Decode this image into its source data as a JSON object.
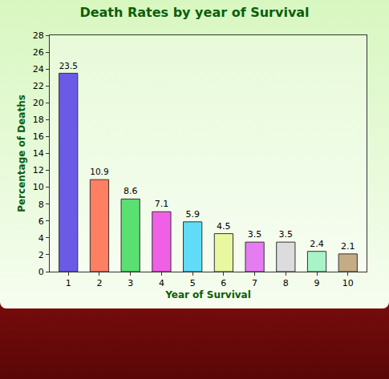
{
  "chart_data": {
    "type": "bar",
    "title": "Death Rates by year of Survival",
    "x_label": "Year of Survival",
    "y_label": "Percentage of Deaths",
    "categories": [
      "1",
      "2",
      "3",
      "4",
      "5",
      "6",
      "7",
      "8",
      "9",
      "10"
    ],
    "values": [
      23.5,
      10.9,
      8.6,
      7.1,
      5.9,
      4.5,
      3.5,
      3.5,
      2.4,
      2.1
    ],
    "colors": [
      "#6a5ae6",
      "#ff7f62",
      "#5ae070",
      "#f060e6",
      "#60dcf8",
      "#e8f8a0",
      "#e67cf2",
      "#dcdcdc",
      "#a8f4c8",
      "#c4ac84"
    ],
    "ylim": [
      0,
      28
    ],
    "yticks": [
      0,
      2,
      4,
      6,
      8,
      10,
      12,
      14,
      16,
      18,
      20,
      22,
      24,
      26,
      28
    ],
    "grid": false,
    "data_labels": true
  }
}
